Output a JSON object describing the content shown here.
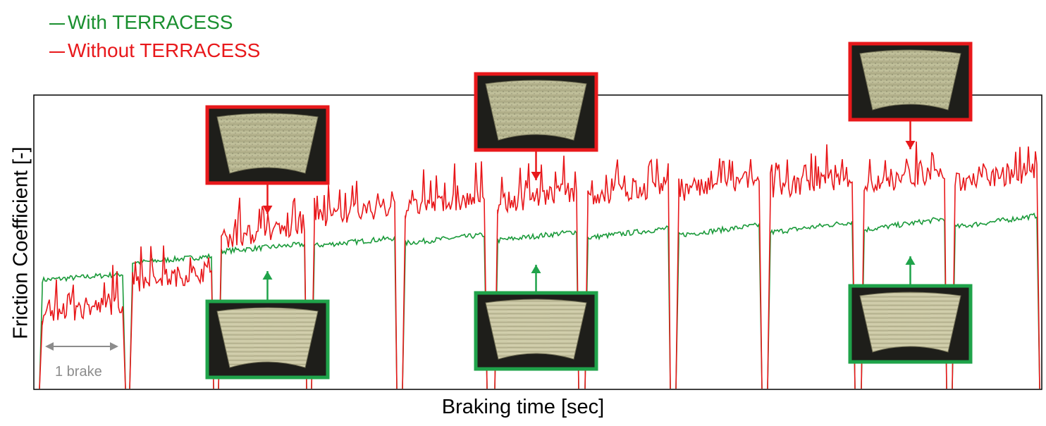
{
  "chart_data": {
    "type": "line",
    "xlabel": "Braking time [sec]",
    "ylabel": "Friction Coefficient [-]",
    "annotation_1brake": "1 brake",
    "grid": false,
    "legend_placement": "top-left, outside plot",
    "series": [
      {
        "name": "With TERRACESS",
        "color": "#1a9a3a",
        "brake_plateau_levels": [
          0.38,
          0.44,
          0.48,
          0.5,
          0.51,
          0.52,
          0.53,
          0.54,
          0.55,
          0.56,
          0.57
        ],
        "trend": "rises within each brake"
      },
      {
        "name": "Without TERRACESS",
        "color": "#e8181b",
        "brake_plateau_levels": [
          0.27,
          0.38,
          0.53,
          0.6,
          0.63,
          0.65,
          0.67,
          0.69,
          0.7,
          0.71,
          0.72
        ],
        "trend": "noisy, highly fluctuating"
      }
    ],
    "brakes": 11,
    "photos": {
      "without": [
        {
          "brake": 3
        },
        {
          "brake": 6
        },
        {
          "brake": 10
        }
      ],
      "with": [
        {
          "brake": 3
        },
        {
          "brake": 6
        },
        {
          "brake": 10
        }
      ]
    },
    "legend_frame_color": "#000000"
  }
}
